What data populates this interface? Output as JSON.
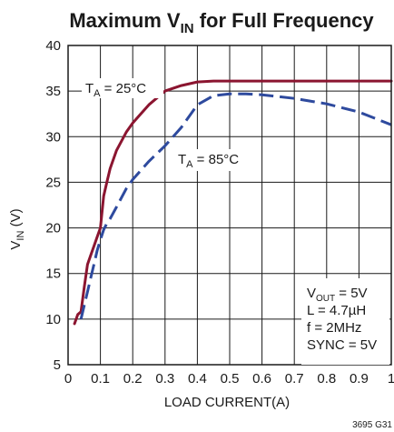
{
  "chart_data": {
    "type": "line",
    "title": {
      "main": "Maximum V",
      "sub": "IN",
      "rest": " for Full Frequency"
    },
    "xlabel": "LOAD CURRENT(A)",
    "ylabel": {
      "main": "V",
      "sub": "IN",
      "rest": " (V)"
    },
    "xlim": [
      0,
      1
    ],
    "ylim": [
      5,
      40
    ],
    "xticks": [
      "0",
      "0.1",
      "0.2",
      "0.3",
      "0.4",
      "0.5",
      "0.6",
      "0.7",
      "0.8",
      "0.9",
      "1"
    ],
    "yticks": [
      "5",
      "10",
      "15",
      "20",
      "25",
      "30",
      "35",
      "40"
    ],
    "grid": true,
    "series": [
      {
        "label": {
          "main": "T",
          "sub": "A",
          "rest": " = 25°C"
        },
        "style": "solid",
        "color": "#8b1530",
        "x": [
          0.02,
          0.03,
          0.04,
          0.05,
          0.06,
          0.07,
          0.08,
          0.09,
          0.1,
          0.11,
          0.12,
          0.13,
          0.15,
          0.18,
          0.2,
          0.25,
          0.3,
          0.35,
          0.4,
          0.45,
          0.5,
          0.6,
          0.7,
          0.8,
          0.9,
          1.0
        ],
        "y": [
          9.5,
          10.5,
          10.8,
          13.5,
          16.0,
          17.0,
          18.0,
          19.0,
          20.0,
          23.5,
          25.0,
          26.5,
          28.5,
          30.5,
          31.5,
          33.5,
          35.0,
          35.6,
          36.0,
          36.1,
          36.1,
          36.1,
          36.1,
          36.1,
          36.1,
          36.1
        ]
      },
      {
        "label": {
          "main": "T",
          "sub": "A",
          "rest": " = 85°C"
        },
        "style": "dashed",
        "color": "#2e4a9e",
        "x": [
          0.04,
          0.05,
          0.06,
          0.07,
          0.08,
          0.09,
          0.1,
          0.11,
          0.12,
          0.13,
          0.15,
          0.18,
          0.2,
          0.25,
          0.3,
          0.35,
          0.4,
          0.45,
          0.5,
          0.55,
          0.6,
          0.7,
          0.8,
          0.9,
          1.0
        ],
        "y": [
          10.0,
          11.5,
          13.0,
          14.5,
          16.0,
          17.5,
          18.7,
          19.8,
          20.5,
          21.0,
          22.3,
          24.3,
          25.3,
          27.3,
          29.0,
          31.0,
          33.5,
          34.5,
          34.7,
          34.7,
          34.6,
          34.2,
          33.6,
          32.7,
          31.3
        ]
      }
    ],
    "conditions": [
      {
        "main": "V",
        "sub": "OUT",
        "rest": " = 5V"
      },
      {
        "main": "L = 4.7µH",
        "sub": "",
        "rest": ""
      },
      {
        "main": "f = 2MHz",
        "sub": "",
        "rest": ""
      },
      {
        "main": "SYNC = 5V",
        "sub": "",
        "rest": ""
      }
    ],
    "figure_id": "3695 G31"
  }
}
